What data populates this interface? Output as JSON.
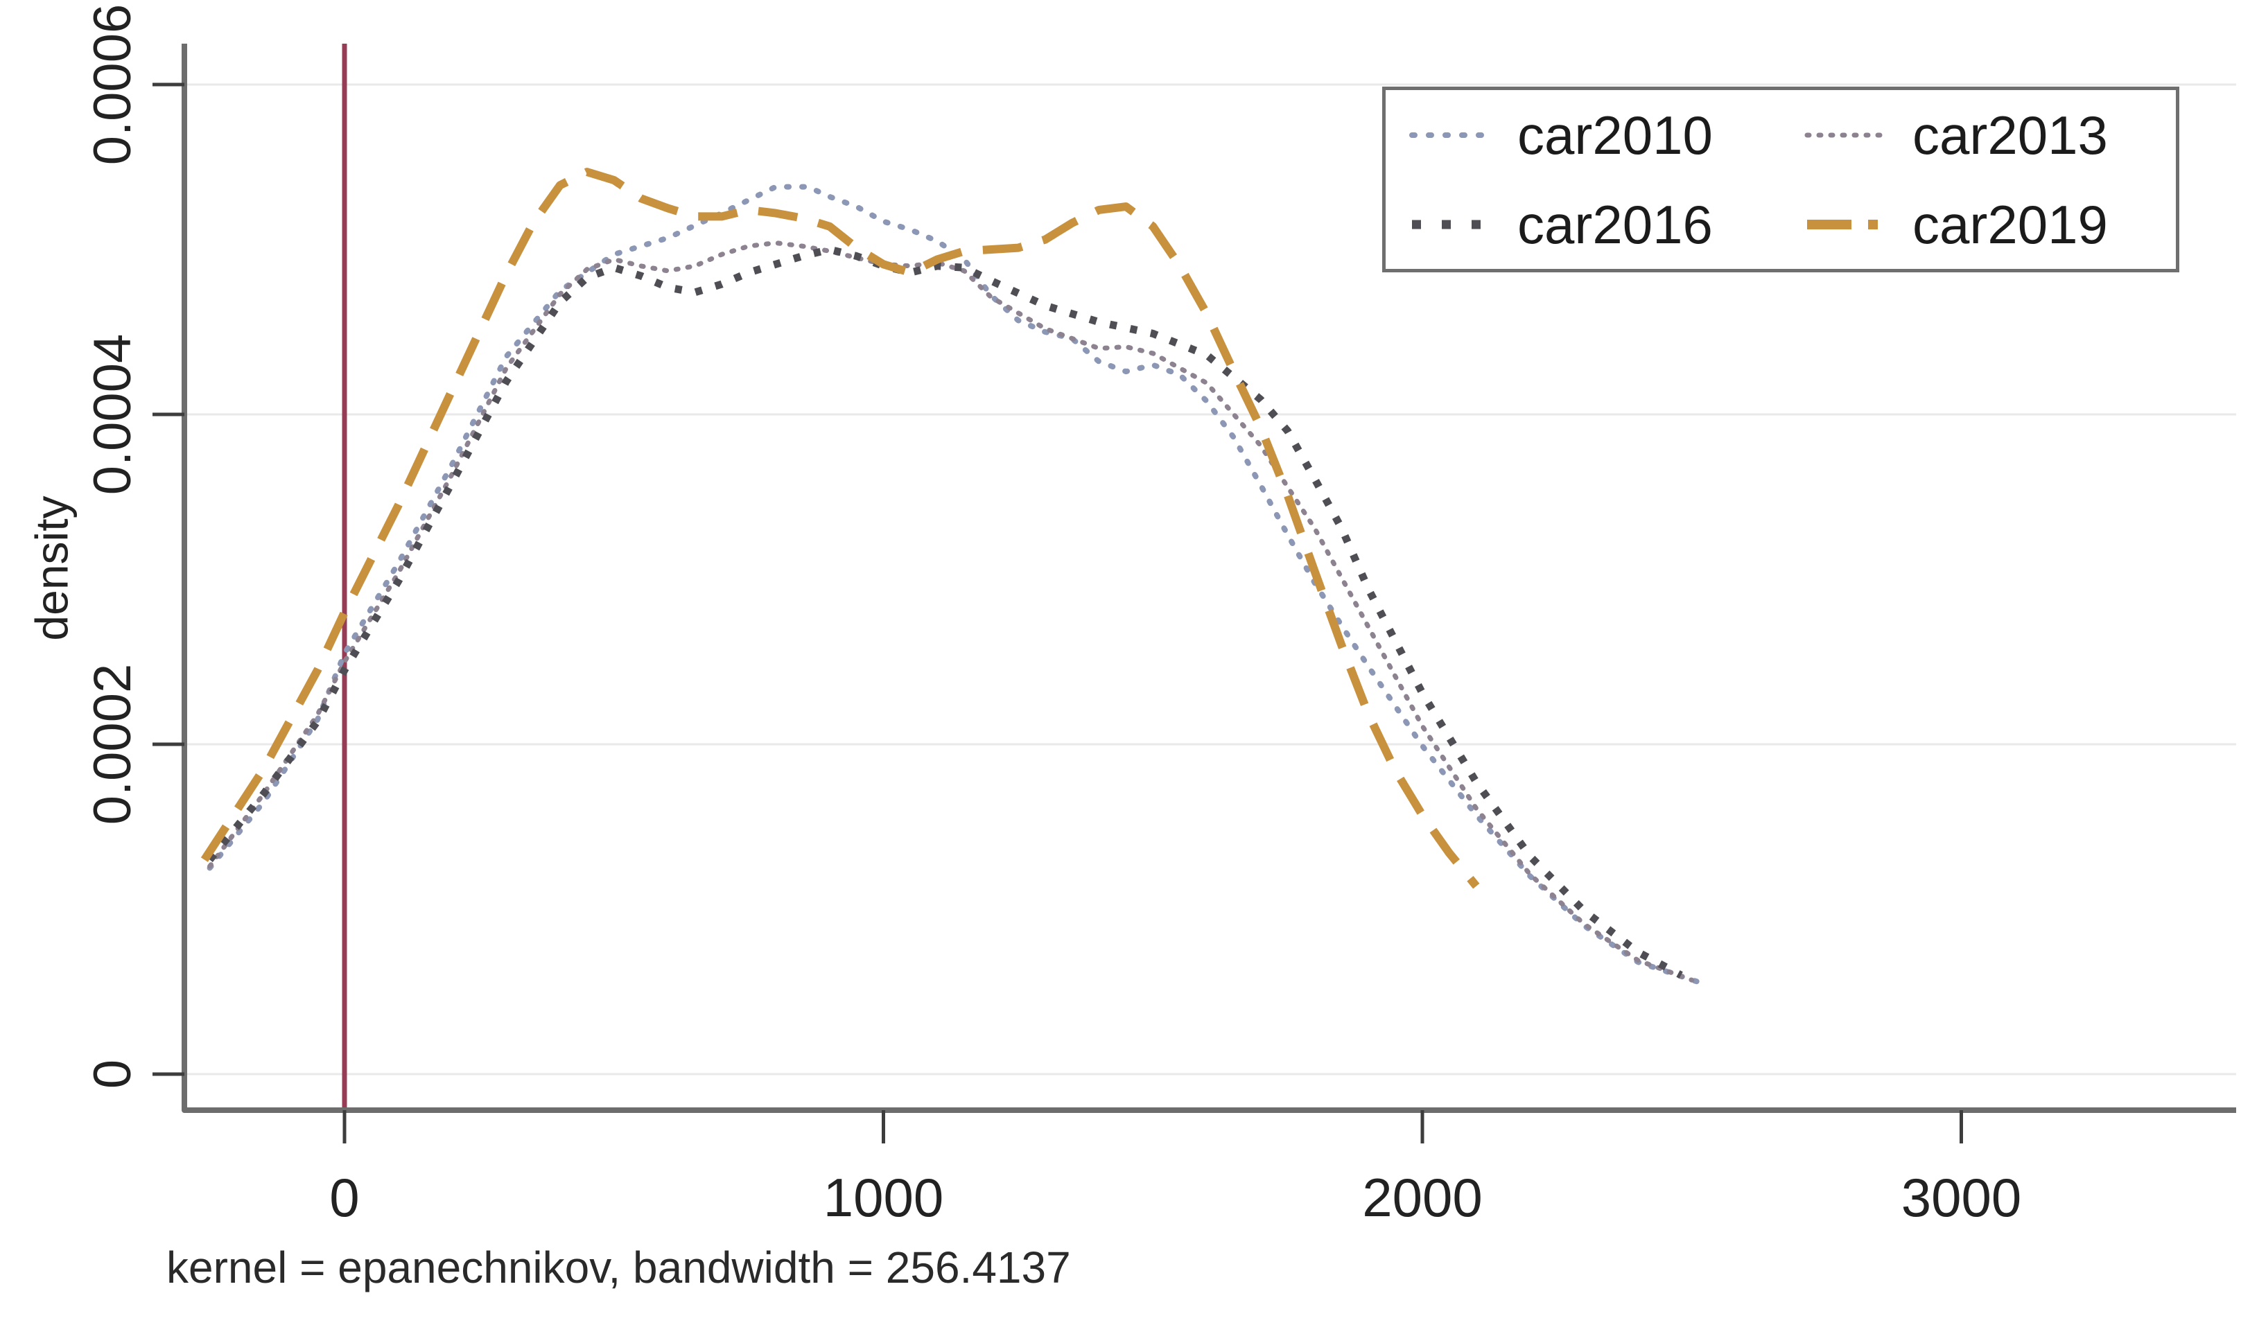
{
  "chart_data": {
    "type": "line",
    "title": "",
    "xlabel": "",
    "ylabel": "density",
    "note": "kernel = epanechnikov, bandwidth = 256.4137",
    "grid": true,
    "legend_position": "top-right",
    "xlim": [
      -300,
      3510
    ],
    "ylim": [
      0,
      0.00062
    ],
    "x_ticks": [
      0,
      1000,
      2000,
      3000
    ],
    "x_tick_labels": [
      "0",
      "1000",
      "2000",
      "3000"
    ],
    "y_ticks": [
      0,
      0.0002,
      0.0004,
      0.0006
    ],
    "y_tick_labels": [
      "0",
      "0.0002",
      "0.0004",
      "0.0006"
    ],
    "reference_line": {
      "x": 0,
      "color": "#963c55"
    },
    "axis_color": "#6d6d6d",
    "grid_color": "#e9e9e9",
    "tick_color": "#3d3d3d",
    "text_color": "#222222",
    "series": [
      {
        "name": "car2010",
        "color": "#8b97b5",
        "pattern": "dot",
        "points": [
          [
            -250,
            0.000125
          ],
          [
            -150,
            0.000165
          ],
          [
            -50,
            0.000215
          ],
          [
            0,
            0.000255
          ],
          [
            100,
            0.00031
          ],
          [
            200,
            0.00037
          ],
          [
            300,
            0.000435
          ],
          [
            400,
            0.000475
          ],
          [
            500,
            0.000497
          ],
          [
            600,
            0.000507
          ],
          [
            700,
            0.000522
          ],
          [
            800,
            0.000538
          ],
          [
            860,
            0.000538
          ],
          [
            900,
            0.000532
          ],
          [
            950,
            0.000526
          ],
          [
            1000,
            0.000517
          ],
          [
            1050,
            0.000512
          ],
          [
            1100,
            0.000505
          ],
          [
            1150,
            0.000494
          ],
          [
            1200,
            0.000472
          ],
          [
            1250,
            0.000457
          ],
          [
            1300,
            0.00045
          ],
          [
            1350,
            0.000446
          ],
          [
            1400,
            0.000432
          ],
          [
            1450,
            0.000426
          ],
          [
            1500,
            0.00043
          ],
          [
            1550,
            0.000424
          ],
          [
            1600,
            0.000408
          ],
          [
            1650,
            0.000386
          ],
          [
            1700,
            0.000357
          ],
          [
            1750,
            0.000327
          ],
          [
            1800,
            0.000298
          ],
          [
            1850,
            0.000272
          ],
          [
            1900,
            0.000247
          ],
          [
            2000,
            0.000199
          ],
          [
            2100,
            0.000157
          ],
          [
            2200,
            0.00012
          ],
          [
            2300,
            9e-05
          ],
          [
            2400,
            6.8e-05
          ],
          [
            2520,
            5.5e-05
          ]
        ]
      },
      {
        "name": "car2013",
        "color": "#8c8290",
        "pattern": "dot-fine",
        "points": [
          [
            -250,
            0.000126
          ],
          [
            -150,
            0.00017
          ],
          [
            -50,
            0.000218
          ],
          [
            0,
            0.00025
          ],
          [
            100,
            0.000304
          ],
          [
            200,
            0.000364
          ],
          [
            300,
            0.000428
          ],
          [
            400,
            0.000473
          ],
          [
            450,
            0.000488
          ],
          [
            500,
            0.000494
          ],
          [
            550,
            0.00049
          ],
          [
            600,
            0.000487
          ],
          [
            650,
            0.00049
          ],
          [
            700,
            0.000497
          ],
          [
            750,
            0.000502
          ],
          [
            800,
            0.000504
          ],
          [
            850,
            0.000502
          ],
          [
            900,
            0.000499
          ],
          [
            950,
            0.000495
          ],
          [
            1000,
            0.000491
          ],
          [
            1050,
            0.00049
          ],
          [
            1100,
            0.000492
          ],
          [
            1150,
            0.000487
          ],
          [
            1200,
            0.000471
          ],
          [
            1300,
            0.000452
          ],
          [
            1400,
            0.00044
          ],
          [
            1450,
            0.000441
          ],
          [
            1500,
            0.000437
          ],
          [
            1600,
            0.000419
          ],
          [
            1700,
            0.000381
          ],
          [
            1800,
            0.000331
          ],
          [
            1900,
            0.000271
          ],
          [
            2000,
            0.000211
          ],
          [
            2100,
            0.000161
          ],
          [
            2200,
            0.000121
          ],
          [
            2300,
            9.1e-05
          ],
          [
            2400,
            6.9e-05
          ],
          [
            2500,
            5.7e-05
          ]
        ]
      },
      {
        "name": "car2016",
        "color": "#4e4e54",
        "pattern": "dot-bold",
        "points": [
          [
            -250,
            0.00013
          ],
          [
            -150,
            0.00017
          ],
          [
            -50,
            0.000214
          ],
          [
            0,
            0.000245
          ],
          [
            100,
            0.000299
          ],
          [
            200,
            0.000359
          ],
          [
            300,
            0.00042
          ],
          [
            400,
            0.000468
          ],
          [
            450,
            0.000483
          ],
          [
            500,
            0.000489
          ],
          [
            550,
            0.000484
          ],
          [
            600,
            0.000477
          ],
          [
            650,
            0.000474
          ],
          [
            700,
            0.000479
          ],
          [
            750,
            0.000486
          ],
          [
            800,
            0.000491
          ],
          [
            850,
            0.000496
          ],
          [
            900,
            0.0005
          ],
          [
            950,
            0.000496
          ],
          [
            1000,
            0.00049
          ],
          [
            1050,
            0.000486
          ],
          [
            1100,
            0.00049
          ],
          [
            1150,
            0.000489
          ],
          [
            1200,
            0.000481
          ],
          [
            1300,
            0.000466
          ],
          [
            1400,
            0.000456
          ],
          [
            1500,
            0.000449
          ],
          [
            1600,
            0.000436
          ],
          [
            1700,
            0.000409
          ],
          [
            1750,
            0.00039
          ],
          [
            1800,
            0.000361
          ],
          [
            1850,
            0.000331
          ],
          [
            1900,
            0.000294
          ],
          [
            2000,
            0.000231
          ],
          [
            2100,
            0.000177
          ],
          [
            2200,
            0.000132
          ],
          [
            2300,
            9.9e-05
          ],
          [
            2400,
            7.4e-05
          ],
          [
            2480,
            6e-05
          ]
        ]
      },
      {
        "name": "car2019",
        "color": "#c8913e",
        "pattern": "long-dash",
        "points": [
          [
            -260,
            0.00013
          ],
          [
            -150,
            0.000185
          ],
          [
            -50,
            0.000245
          ],
          [
            0,
            0.00028
          ],
          [
            100,
            0.000345
          ],
          [
            200,
            0.000415
          ],
          [
            300,
            0.000485
          ],
          [
            350,
            0.000516
          ],
          [
            400,
            0.000539
          ],
          [
            450,
            0.000547
          ],
          [
            500,
            0.000542
          ],
          [
            550,
            0.000531
          ],
          [
            600,
            0.000525
          ],
          [
            650,
            0.00052
          ],
          [
            700,
            0.00052
          ],
          [
            750,
            0.000524
          ],
          [
            800,
            0.000522
          ],
          [
            850,
            0.000519
          ],
          [
            900,
            0.000514
          ],
          [
            950,
            0.000501
          ],
          [
            1000,
            0.000491
          ],
          [
            1050,
            0.000486
          ],
          [
            1100,
            0.000494
          ],
          [
            1150,
            0.000499
          ],
          [
            1200,
            0.0005
          ],
          [
            1250,
            0.000501
          ],
          [
            1300,
            0.000506
          ],
          [
            1350,
            0.000516
          ],
          [
            1400,
            0.000524
          ],
          [
            1450,
            0.000526
          ],
          [
            1500,
            0.000514
          ],
          [
            1550,
            0.00049
          ],
          [
            1600,
            0.000461
          ],
          [
            1650,
            0.000426
          ],
          [
            1700,
            0.000392
          ],
          [
            1750,
            0.000351
          ],
          [
            1800,
            0.000305
          ],
          [
            1850,
            0.00026
          ],
          [
            1900,
            0.000218
          ],
          [
            1950,
            0.000184
          ],
          [
            2000,
            0.000157
          ],
          [
            2050,
            0.000134
          ],
          [
            2100,
            0.000114
          ]
        ]
      }
    ]
  }
}
